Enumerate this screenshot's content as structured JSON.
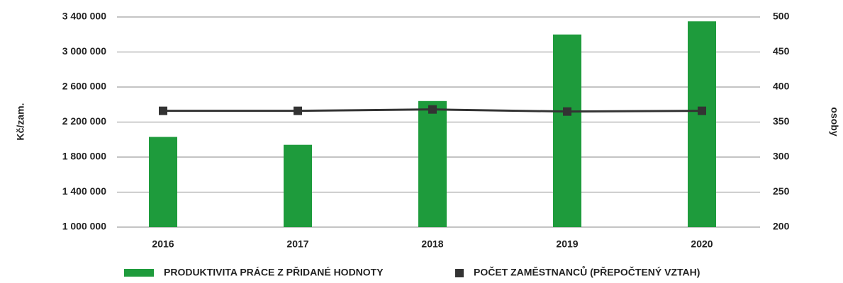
{
  "chart_data": {
    "type": "bar_line",
    "categories": [
      "2016",
      "2017",
      "2018",
      "2019",
      "2020"
    ],
    "series": [
      {
        "name": "PRODUKTIVITA PRÁCE Z PŘIDANÉ HODNOTY",
        "color": "#1e9b3c",
        "type": "bar",
        "values": [
          2030000,
          1940000,
          2440000,
          3200000,
          3350000
        ]
      },
      {
        "name": "POČET ZAMĚSTNANCŮ (PŘEPOČTENÝ VZTAH)",
        "color": "#333333",
        "type": "line",
        "axis": "y2",
        "values": [
          366,
          366,
          368,
          365,
          366
        ]
      }
    ],
    "ylabel": "Kč/zam.",
    "y2label": "osoby",
    "ylim": [
      1000000,
      3400000
    ],
    "yticks": [
      {
        "value": 1000000,
        "label": "1 000 000"
      },
      {
        "value": 1400000,
        "label": "1 400 000"
      },
      {
        "value": 1800000,
        "label": "1 800 000"
      },
      {
        "value": 2200000,
        "label": "2 200 000"
      },
      {
        "value": 2600000,
        "label": "2 600 000"
      },
      {
        "value": 3000000,
        "label": "3 000 000"
      },
      {
        "value": 3400000,
        "label": "3 400 000"
      }
    ],
    "y2lim": [
      200,
      500
    ],
    "y2ticks": [
      200,
      250,
      300,
      350,
      400,
      450,
      500
    ],
    "grid": true,
    "legend": "bottom"
  }
}
